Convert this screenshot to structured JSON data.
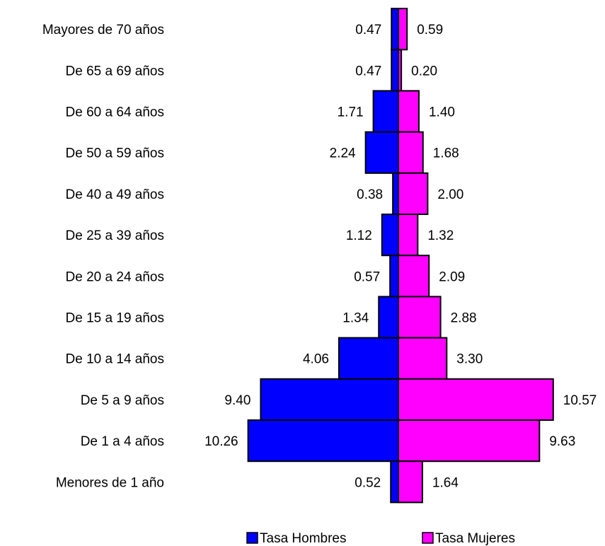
{
  "chart_data": {
    "type": "bar",
    "orientation": "horizontal",
    "style": "population-pyramid",
    "categories": [
      "Mayores de 70 años",
      "De 65 a 69 años",
      "De 60 a 64 años",
      "De 50 a 59 años",
      "De 40 a 49 años",
      "De 25 a 39 años",
      "De 20 a 24 años",
      "De 15 a 19 años",
      "De 10 a 14 años",
      "De 5 a 9 años",
      "De 1 a 4 años",
      "Menores de 1 año"
    ],
    "series": [
      {
        "name": "Tasa Hombres",
        "color": "#0000FF",
        "side": "left",
        "values": [
          0.47,
          0.47,
          1.71,
          2.24,
          0.38,
          1.12,
          0.57,
          1.34,
          4.06,
          9.4,
          10.26,
          0.52
        ],
        "labels": [
          "0.47",
          "0.47",
          "1.71",
          "2.24",
          "0.38",
          "1.12",
          "0.57",
          "1.34",
          "4.06",
          "9.40",
          "10.26",
          "0.52"
        ]
      },
      {
        "name": "Tasa Mujeres",
        "color": "#FF00FF",
        "side": "right",
        "values": [
          0.59,
          0.2,
          1.4,
          1.68,
          2.0,
          1.32,
          2.09,
          2.88,
          3.3,
          10.57,
          9.63,
          1.64
        ],
        "labels": [
          "0.59",
          "0.20",
          "1.40",
          "1.68",
          "2.00",
          "1.32",
          "2.09",
          "2.88",
          "3.30",
          "10.57",
          "9.63",
          "1.64"
        ]
      }
    ],
    "title": "",
    "xlabel": "",
    "ylabel": "",
    "legend_position": "bottom",
    "grid": false,
    "bar_outline_color": "#000000"
  }
}
